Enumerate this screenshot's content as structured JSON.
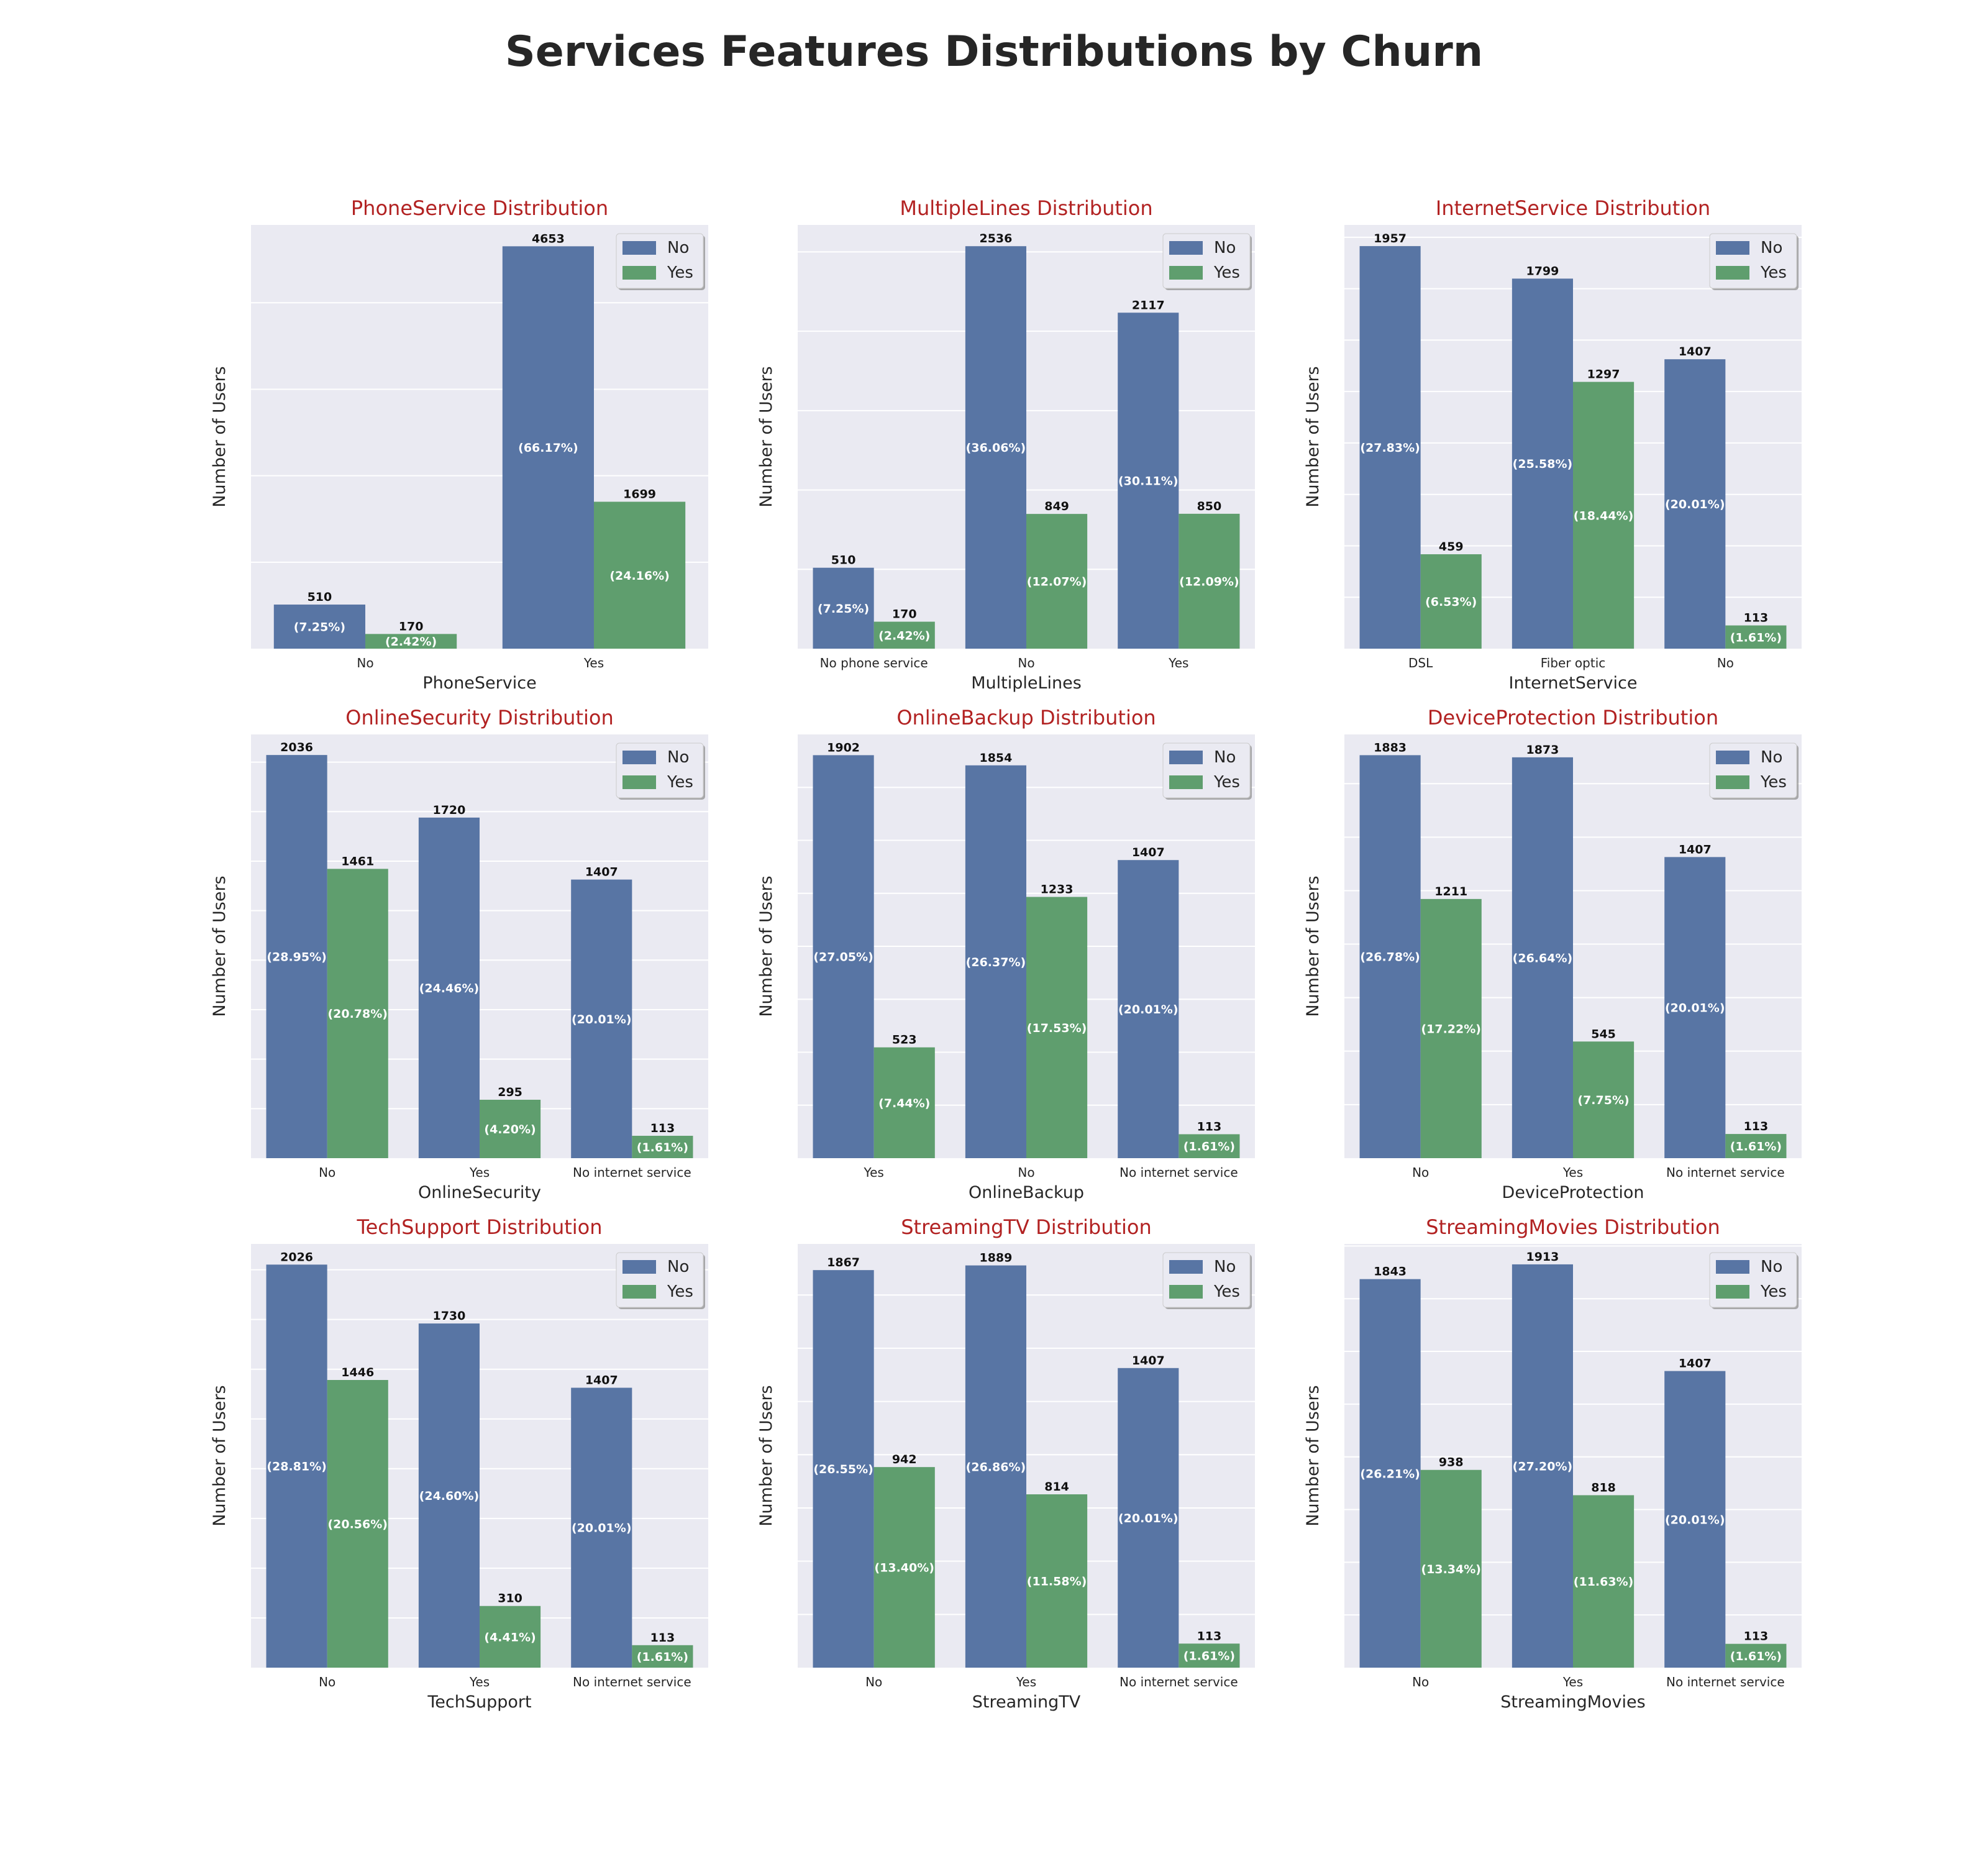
{
  "figure": {
    "title": "Services Features Distributions by Churn"
  },
  "colors": {
    "no": "#5875a4",
    "yes": "#5f9e6e",
    "panel_bg": "#eaeaf2",
    "grid": "#ffffff",
    "title": "#b22222"
  },
  "legend": {
    "entries": [
      "No",
      "Yes"
    ],
    "placement": "upper right"
  },
  "chart_data": [
    {
      "type": "bar",
      "title": "PhoneService Distribution",
      "xlabel": "PhoneService",
      "ylabel": "Number of Users",
      "categories": [
        "No",
        "Yes"
      ],
      "series": [
        {
          "name": "No",
          "values": [
            510,
            4653
          ],
          "percent_labels": [
            "(7.25%)",
            "(66.17%)"
          ]
        },
        {
          "name": "Yes",
          "values": [
            170,
            1699
          ],
          "percent_labels": [
            "(2.42%)",
            "(24.16%)"
          ]
        }
      ],
      "ylim": [
        0,
        4900
      ],
      "grid_step": 1000
    },
    {
      "type": "bar",
      "title": "MultipleLines Distribution",
      "xlabel": "MultipleLines",
      "ylabel": "Number of Users",
      "categories": [
        "No phone service",
        "No",
        "Yes"
      ],
      "series": [
        {
          "name": "No",
          "values": [
            510,
            2536,
            2117
          ],
          "percent_labels": [
            "(7.25%)",
            "(36.06%)",
            "(30.11%)"
          ]
        },
        {
          "name": "Yes",
          "values": [
            170,
            849,
            850
          ],
          "percent_labels": [
            "(2.42%)",
            "(12.07%)",
            "(12.09%)"
          ]
        }
      ],
      "ylim": [
        0,
        2670
      ],
      "grid_step": 500
    },
    {
      "type": "bar",
      "title": "InternetService Distribution",
      "xlabel": "InternetService",
      "ylabel": "Number of Users",
      "categories": [
        "DSL",
        "Fiber optic",
        "No"
      ],
      "series": [
        {
          "name": "No",
          "values": [
            1957,
            1799,
            1407
          ],
          "percent_labels": [
            "(27.83%)",
            "(25.58%)",
            "(20.01%)"
          ]
        },
        {
          "name": "Yes",
          "values": [
            459,
            1297,
            113
          ],
          "percent_labels": [
            "(6.53%)",
            "(18.44%)",
            "(1.61%)"
          ]
        }
      ],
      "ylim": [
        0,
        2060
      ],
      "grid_step": 250
    },
    {
      "type": "bar",
      "title": "OnlineSecurity Distribution",
      "xlabel": "OnlineSecurity",
      "ylabel": "Number of Users",
      "categories": [
        "No",
        "Yes",
        "No internet service"
      ],
      "series": [
        {
          "name": "No",
          "values": [
            2036,
            1720,
            1407
          ],
          "percent_labels": [
            "(28.95%)",
            "(24.46%)",
            "(20.01%)"
          ]
        },
        {
          "name": "Yes",
          "values": [
            1461,
            295,
            113
          ],
          "percent_labels": [
            "(20.78%)",
            "(4.20%)",
            "(1.61%)"
          ]
        }
      ],
      "ylim": [
        0,
        2140
      ],
      "grid_step": 250
    },
    {
      "type": "bar",
      "title": "OnlineBackup Distribution",
      "xlabel": "OnlineBackup",
      "ylabel": "Number of Users",
      "categories": [
        "Yes",
        "No",
        "No internet service"
      ],
      "series": [
        {
          "name": "No",
          "values": [
            1902,
            1854,
            1407
          ],
          "percent_labels": [
            "(27.05%)",
            "(26.37%)",
            "(20.01%)"
          ]
        },
        {
          "name": "Yes",
          "values": [
            523,
            1233,
            113
          ],
          "percent_labels": [
            "(7.44%)",
            "(17.53%)",
            "(1.61%)"
          ]
        }
      ],
      "ylim": [
        0,
        2000
      ],
      "grid_step": 250
    },
    {
      "type": "bar",
      "title": "DeviceProtection Distribution",
      "xlabel": "DeviceProtection",
      "ylabel": "Number of Users",
      "categories": [
        "No",
        "Yes",
        "No internet service"
      ],
      "series": [
        {
          "name": "No",
          "values": [
            1883,
            1873,
            1407
          ],
          "percent_labels": [
            "(26.78%)",
            "(26.64%)",
            "(20.01%)"
          ]
        },
        {
          "name": "Yes",
          "values": [
            1211,
            545,
            113
          ],
          "percent_labels": [
            "(17.22%)",
            "(7.75%)",
            "(1.61%)"
          ]
        }
      ],
      "ylim": [
        0,
        1980
      ],
      "grid_step": 250
    },
    {
      "type": "bar",
      "title": "TechSupport Distribution",
      "xlabel": "TechSupport",
      "ylabel": "Number of Users",
      "categories": [
        "No",
        "Yes",
        "No internet service"
      ],
      "series": [
        {
          "name": "No",
          "values": [
            2026,
            1730,
            1407
          ],
          "percent_labels": [
            "(28.81%)",
            "(24.60%)",
            "(20.01%)"
          ]
        },
        {
          "name": "Yes",
          "values": [
            1446,
            310,
            113
          ],
          "percent_labels": [
            "(20.56%)",
            "(4.41%)",
            "(1.61%)"
          ]
        }
      ],
      "ylim": [
        0,
        2130
      ],
      "grid_step": 250
    },
    {
      "type": "bar",
      "title": "StreamingTV Distribution",
      "xlabel": "StreamingTV",
      "ylabel": "Number of Users",
      "categories": [
        "No",
        "Yes",
        "No internet service"
      ],
      "series": [
        {
          "name": "No",
          "values": [
            1867,
            1889,
            1407
          ],
          "percent_labels": [
            "(26.55%)",
            "(26.86%)",
            "(20.01%)"
          ]
        },
        {
          "name": "Yes",
          "values": [
            942,
            814,
            113
          ],
          "percent_labels": [
            "(13.40%)",
            "(11.58%)",
            "(1.61%)"
          ]
        }
      ],
      "ylim": [
        0,
        1990
      ],
      "grid_step": 250
    },
    {
      "type": "bar",
      "title": "StreamingMovies Distribution",
      "xlabel": "StreamingMovies",
      "ylabel": "Number of Users",
      "categories": [
        "No",
        "Yes",
        "No internet service"
      ],
      "series": [
        {
          "name": "No",
          "values": [
            1843,
            1913,
            1407
          ],
          "percent_labels": [
            "(26.21%)",
            "(27.20%)",
            "(20.01%)"
          ]
        },
        {
          "name": "Yes",
          "values": [
            938,
            818,
            113
          ],
          "percent_labels": [
            "(13.34%)",
            "(11.63%)",
            "(1.61%)"
          ]
        }
      ],
      "ylim": [
        0,
        2010
      ],
      "grid_step": 250
    }
  ]
}
